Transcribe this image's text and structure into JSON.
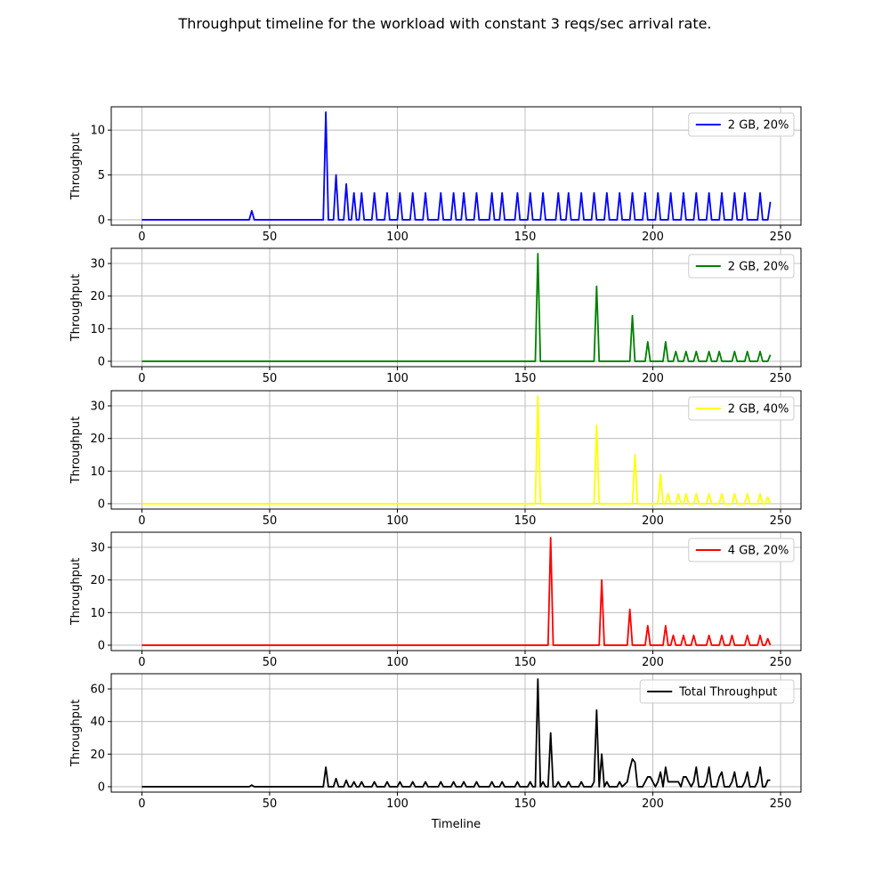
{
  "figure": {
    "title": "Throughput timeline for the workload with constant 3 reqs/sec arrival rate."
  },
  "chart_data": [
    {
      "type": "line",
      "legend_placement": "top-right",
      "grid": true,
      "xlabel": "",
      "ylabel": "Throughput",
      "xlim": [
        -12,
        258
      ],
      "ylim": [
        -0.6,
        12.6
      ],
      "xticks": [
        0,
        50,
        100,
        150,
        200,
        250
      ],
      "yticks": [
        0,
        5,
        10
      ],
      "series": [
        {
          "name": "2 GB, 20%",
          "color": "#0000ff",
          "x": [
            0,
            42,
            43,
            44,
            71,
            72,
            73,
            75,
            76,
            77,
            79,
            80,
            81,
            82,
            83,
            84,
            85,
            86,
            87,
            90,
            91,
            92,
            95,
            96,
            97,
            100,
            101,
            102,
            105,
            106,
            107,
            110,
            111,
            112,
            116,
            117,
            118,
            121,
            122,
            123,
            125,
            126,
            127,
            130,
            131,
            132,
            136,
            137,
            138,
            140,
            141,
            142,
            146,
            147,
            148,
            151,
            152,
            153,
            156,
            157,
            158,
            162,
            163,
            164,
            166,
            167,
            168,
            171,
            172,
            173,
            176,
            177,
            178,
            181,
            182,
            183,
            186,
            187,
            188,
            191,
            192,
            193,
            196,
            197,
            198,
            201,
            202,
            203,
            206,
            207,
            208,
            211,
            212,
            213,
            216,
            217,
            218,
            221,
            222,
            223,
            226,
            227,
            228,
            231,
            232,
            233,
            235,
            236,
            237,
            241,
            242,
            243,
            245,
            246
          ],
          "y": [
            0,
            0,
            1,
            0,
            0,
            12,
            0,
            0,
            5,
            0,
            0,
            4,
            0,
            0,
            3,
            0,
            0,
            3,
            0,
            0,
            3,
            0,
            0,
            3,
            0,
            0,
            3,
            0,
            0,
            3,
            0,
            0,
            3,
            0,
            0,
            3,
            0,
            0,
            3,
            0,
            0,
            3,
            0,
            0,
            3,
            0,
            0,
            3,
            0,
            0,
            3,
            0,
            0,
            3,
            0,
            0,
            3,
            0,
            0,
            3,
            0,
            0,
            3,
            0,
            0,
            3,
            0,
            0,
            3,
            0,
            0,
            3,
            0,
            0,
            3,
            0,
            0,
            3,
            0,
            0,
            3,
            0,
            0,
            3,
            0,
            0,
            3,
            0,
            0,
            3,
            0,
            0,
            3,
            0,
            0,
            3,
            0,
            0,
            3,
            0,
            0,
            3,
            0,
            0,
            3,
            0,
            0,
            3,
            0,
            0,
            3,
            0,
            0,
            2
          ]
        }
      ]
    },
    {
      "type": "line",
      "legend_placement": "top-right",
      "grid": true,
      "xlabel": "",
      "ylabel": "Throughput",
      "xlim": [
        -12,
        258
      ],
      "ylim": [
        -1.65,
        34.65
      ],
      "xticks": [
        0,
        50,
        100,
        150,
        200,
        250
      ],
      "yticks": [
        0,
        10,
        20,
        30
      ],
      "series": [
        {
          "name": "2 GB, 20%",
          "color": "#008000",
          "x": [
            0,
            154,
            155,
            156,
            177,
            178,
            179,
            191,
            192,
            193,
            197,
            198,
            199,
            204,
            205,
            206,
            208,
            209,
            210,
            212,
            213,
            214,
            216,
            217,
            218,
            221,
            222,
            223,
            225,
            226,
            227,
            231,
            232,
            233,
            236,
            237,
            238,
            241,
            242,
            243,
            245,
            246
          ],
          "y": [
            0,
            0,
            33,
            0,
            0,
            23,
            0,
            0,
            14,
            0,
            0,
            6,
            0,
            0,
            6,
            0,
            0,
            3,
            0,
            0,
            3,
            0,
            0,
            3,
            0,
            0,
            3,
            0,
            0,
            3,
            0,
            0,
            3,
            0,
            0,
            3,
            0,
            0,
            3,
            0,
            0,
            2
          ]
        }
      ]
    },
    {
      "type": "line",
      "legend_placement": "top-right",
      "grid": true,
      "xlabel": "",
      "ylabel": "Throughput",
      "xlim": [
        -12,
        258
      ],
      "ylim": [
        -1.65,
        34.65
      ],
      "xticks": [
        0,
        50,
        100,
        150,
        200,
        250
      ],
      "yticks": [
        0,
        10,
        20,
        30
      ],
      "series": [
        {
          "name": "2 GB, 40%",
          "color": "#ffff00",
          "x": [
            0,
            154,
            155,
            156,
            177,
            178,
            179,
            192,
            193,
            194,
            202,
            203,
            204,
            205,
            206,
            207,
            209,
            210,
            211,
            212,
            213,
            214,
            216,
            217,
            218,
            221,
            222,
            223,
            226,
            227,
            228,
            231,
            232,
            233,
            236,
            237,
            238,
            241,
            242,
            243,
            244,
            245,
            246
          ],
          "y": [
            0,
            0,
            33,
            0,
            0,
            24,
            0,
            0,
            15,
            0,
            0,
            9,
            0,
            0,
            3,
            0,
            0,
            3,
            0,
            0,
            3,
            0,
            0,
            3,
            0,
            0,
            3,
            0,
            0,
            3,
            0,
            0,
            3,
            0,
            0,
            3,
            0,
            0,
            3,
            0,
            0,
            2,
            0
          ]
        }
      ]
    },
    {
      "type": "line",
      "legend_placement": "top-right",
      "grid": true,
      "xlabel": "",
      "ylabel": "Throughput",
      "xlim": [
        -12,
        258
      ],
      "ylim": [
        -1.65,
        34.65
      ],
      "xticks": [
        0,
        50,
        100,
        150,
        200,
        250
      ],
      "yticks": [
        0,
        10,
        20,
        30
      ],
      "series": [
        {
          "name": "4 GB, 20%",
          "color": "#ff0000",
          "x": [
            0,
            159,
            160,
            161,
            179,
            180,
            181,
            190,
            191,
            192,
            197,
            198,
            199,
            204,
            205,
            206,
            207,
            208,
            209,
            211,
            212,
            213,
            215,
            216,
            217,
            221,
            222,
            223,
            226,
            227,
            228,
            230,
            231,
            232,
            236,
            237,
            238,
            241,
            242,
            243,
            244,
            245,
            246
          ],
          "y": [
            0,
            0,
            33,
            0,
            0,
            20,
            0,
            0,
            11,
            0,
            0,
            6,
            0,
            0,
            6,
            0,
            0,
            3,
            0,
            0,
            3,
            0,
            0,
            3,
            0,
            0,
            3,
            0,
            0,
            3,
            0,
            0,
            3,
            0,
            0,
            3,
            0,
            0,
            3,
            0,
            0,
            2,
            0
          ]
        }
      ]
    },
    {
      "type": "line",
      "legend_placement": "top-right",
      "grid": true,
      "xlabel": "Timeline",
      "ylabel": "Throughput",
      "xlim": [
        -12,
        258
      ],
      "ylim": [
        -3.3,
        69.3
      ],
      "xticks": [
        0,
        50,
        100,
        150,
        200,
        250
      ],
      "yticks": [
        0,
        20,
        40,
        60
      ],
      "series": [
        {
          "name": "Total Throughput",
          "color": "#000000",
          "x": [
            0,
            42,
            43,
            44,
            71,
            72,
            73,
            75,
            76,
            77,
            79,
            80,
            81,
            82,
            83,
            84,
            85,
            86,
            87,
            90,
            91,
            92,
            95,
            96,
            97,
            100,
            101,
            102,
            105,
            106,
            107,
            110,
            111,
            112,
            116,
            117,
            118,
            121,
            122,
            123,
            125,
            126,
            127,
            130,
            131,
            132,
            136,
            137,
            138,
            140,
            141,
            142,
            146,
            147,
            148,
            151,
            152,
            153,
            154,
            155,
            156,
            157,
            158,
            159,
            160,
            161,
            162,
            163,
            164,
            166,
            167,
            168,
            171,
            172,
            173,
            176,
            177,
            178,
            179,
            180,
            181,
            182,
            183,
            186,
            187,
            188,
            190,
            191,
            192,
            193,
            194,
            196,
            197,
            198,
            199,
            201,
            202,
            203,
            204,
            205,
            206,
            207,
            208,
            209,
            210,
            211,
            212,
            213,
            215,
            216,
            217,
            218,
            220,
            221,
            222,
            223,
            225,
            226,
            227,
            228,
            230,
            231,
            232,
            233,
            235,
            236,
            237,
            238,
            240,
            241,
            242,
            243,
            244,
            245,
            246
          ],
          "y": [
            0,
            0,
            1,
            0,
            0,
            12,
            0,
            0,
            5,
            0,
            0,
            4,
            0,
            0,
            3,
            0,
            0,
            3,
            0,
            0,
            3,
            0,
            0,
            3,
            0,
            0,
            3,
            0,
            0,
            3,
            0,
            0,
            3,
            0,
            0,
            3,
            0,
            0,
            3,
            0,
            0,
            3,
            0,
            0,
            3,
            0,
            0,
            3,
            0,
            0,
            3,
            0,
            0,
            3,
            0,
            0,
            3,
            0,
            0,
            66,
            0,
            3,
            0,
            0,
            33,
            0,
            0,
            3,
            0,
            0,
            3,
            0,
            0,
            3,
            0,
            0,
            3,
            47,
            0,
            20,
            0,
            3,
            0,
            0,
            3,
            0,
            3,
            11,
            17,
            15,
            0,
            0,
            3,
            6,
            6,
            0,
            3,
            9,
            0,
            12,
            3,
            3,
            3,
            3,
            3,
            0,
            6,
            6,
            0,
            3,
            12,
            0,
            0,
            3,
            12,
            0,
            0,
            6,
            9,
            0,
            0,
            3,
            9,
            0,
            0,
            3,
            9,
            0,
            0,
            3,
            12,
            0,
            0,
            4,
            4
          ]
        }
      ]
    }
  ]
}
